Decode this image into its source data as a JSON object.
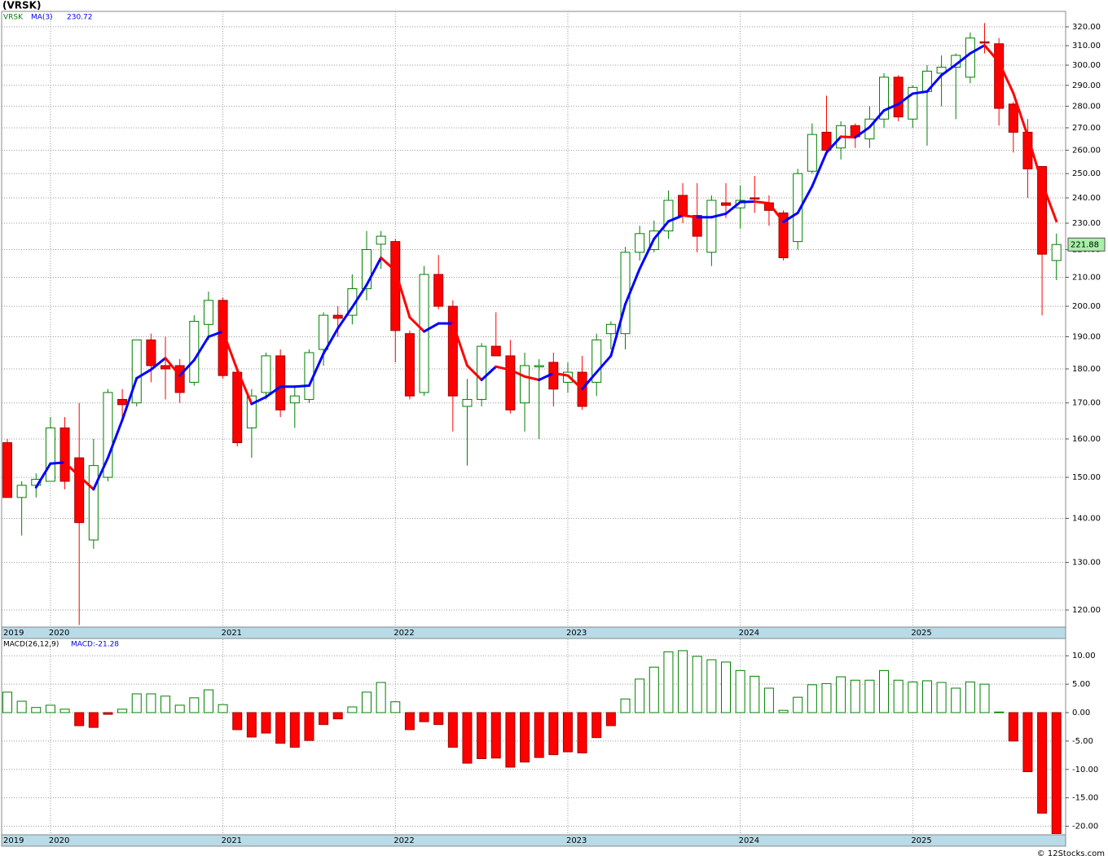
{
  "title": "(VRSK)",
  "footer": "© 12Stocks.com",
  "chart_data": [
    {
      "type": "candlestick",
      "log_scale": true,
      "grid": true,
      "categories": [
        "2019",
        null,
        null,
        "2020",
        null,
        null,
        null,
        null,
        null,
        null,
        null,
        null,
        null,
        null,
        null,
        "2021",
        null,
        null,
        null,
        null,
        null,
        null,
        null,
        null,
        null,
        null,
        null,
        "2022",
        null,
        null,
        null,
        null,
        null,
        null,
        null,
        null,
        null,
        null,
        null,
        "2023",
        null,
        null,
        null,
        null,
        null,
        null,
        null,
        null,
        null,
        null,
        null,
        "2024",
        null,
        null,
        null,
        null,
        null,
        null,
        null,
        null,
        null,
        null,
        null,
        "2025",
        null,
        null,
        null,
        null,
        null,
        null,
        null,
        null,
        null,
        null
      ],
      "ylim": [
        116.6,
        328.4
      ],
      "yticks": [
        {
          "value": 120,
          "label": "120.00"
        },
        {
          "value": 130,
          "label": "130.00"
        },
        {
          "value": 140,
          "label": "140.00"
        },
        {
          "value": 150,
          "label": "150.00"
        },
        {
          "value": 160,
          "label": "160.00"
        },
        {
          "value": 170,
          "label": "170.00"
        },
        {
          "value": 180,
          "label": "180.00"
        },
        {
          "value": 190,
          "label": "190.00"
        },
        {
          "value": 200,
          "label": "200.00"
        },
        {
          "value": 210,
          "label": "210.00"
        },
        {
          "value": 220,
          "label": "220.00"
        },
        {
          "value": 230,
          "label": "230.00"
        },
        {
          "value": 240,
          "label": "240.00"
        },
        {
          "value": 250,
          "label": "250.00"
        },
        {
          "value": 260,
          "label": "260.00"
        },
        {
          "value": 270,
          "label": "270.00"
        },
        {
          "value": 280,
          "label": "280.00"
        },
        {
          "value": 290,
          "label": "290.00"
        },
        {
          "value": 300,
          "label": "300.00"
        },
        {
          "value": 310,
          "label": "310.00"
        },
        {
          "value": 320,
          "label": "320.00"
        }
      ],
      "series": [
        {
          "name": "VRSK",
          "up_color": "#008000",
          "down_color": "#ff0000",
          "open": [
            159,
            145,
            148,
            149,
            163,
            155,
            135,
            150,
            171,
            170,
            189,
            181,
            181,
            176,
            194,
            202,
            179,
            163,
            173,
            184,
            170,
            171,
            186,
            197,
            197,
            206,
            222,
            223,
            191,
            173,
            211,
            200,
            169,
            171,
            187,
            184,
            170,
            181,
            182,
            176,
            179,
            176,
            191,
            191,
            219,
            220,
            227,
            241,
            233,
            219,
            238,
            236,
            240,
            238,
            234,
            223,
            251,
            268,
            261,
            271,
            265,
            274,
            294,
            274,
            287,
            296,
            299,
            294,
            312,
            311,
            281,
            268,
            253,
            216
          ],
          "high": [
            160,
            149,
            151,
            166,
            166,
            170,
            160,
            174,
            174,
            189,
            191,
            190,
            183,
            197,
            205,
            203,
            180,
            174,
            185,
            186,
            175,
            186,
            198,
            200,
            211,
            227,
            227,
            224,
            192,
            214,
            218,
            202,
            177,
            188,
            198,
            189,
            185,
            183,
            185,
            182,
            184,
            191,
            195,
            221,
            229,
            231,
            243,
            246,
            246,
            241,
            246,
            245,
            249,
            241,
            235,
            252,
            272,
            285,
            273,
            272,
            280,
            296,
            295,
            290,
            300,
            305,
            306,
            317,
            322,
            314,
            282,
            274,
            253,
            226
          ],
          "low": [
            145,
            136,
            145,
            149,
            147,
            117,
            133,
            149,
            165,
            169,
            176,
            171,
            170,
            175,
            189,
            177,
            158,
            155,
            171,
            166,
            163,
            170,
            181,
            190,
            194,
            202,
            213,
            182,
            171,
            172,
            199,
            162,
            153,
            169,
            184,
            167,
            162,
            160,
            169,
            173,
            168,
            172,
            186,
            186,
            216,
            219,
            224,
            230,
            219,
            214,
            232,
            228,
            234,
            229,
            216,
            220,
            250,
            259,
            256,
            261,
            261,
            270,
            273,
            270,
            262,
            280,
            274,
            291,
            306,
            271,
            259,
            240,
            197,
            209
          ],
          "close": [
            145,
            148,
            149.5,
            163,
            149,
            139,
            153,
            173,
            169.5,
            189,
            181,
            180,
            173,
            195,
            202,
            178,
            159,
            172,
            184,
            168,
            172,
            185,
            197,
            196,
            206,
            220,
            225,
            192,
            172,
            211,
            200,
            172,
            171,
            187,
            184,
            168,
            181,
            181,
            174,
            179,
            169,
            189,
            194,
            219,
            226,
            227,
            239,
            233,
            225,
            239,
            237,
            239,
            239.5,
            235,
            217,
            250,
            267,
            260,
            271,
            266,
            274,
            294,
            275,
            289,
            297,
            299,
            305,
            314,
            311.5,
            279,
            268,
            252,
            218.3,
            221.88
          ]
        },
        {
          "name": "MA(3)",
          "type": "line",
          "color": "#0000ff",
          "falling_color": "#ff0000",
          "values": [
            null,
            null,
            147.5,
            153.5,
            153.8,
            150.3,
            147,
            155,
            165.2,
            177.2,
            179.8,
            183.3,
            178,
            182.7,
            190,
            191.7,
            179.7,
            169.7,
            171.7,
            174.7,
            174.7,
            175,
            184.7,
            192.7,
            199.7,
            207.3,
            217,
            212.3,
            196.3,
            191.7,
            194.3,
            194.3,
            181,
            176.7,
            180.7,
            179.7,
            177.7,
            176.7,
            178.7,
            178,
            174,
            179,
            184,
            200.7,
            213,
            224,
            230.7,
            233,
            232.3,
            232.3,
            233.7,
            238.3,
            238.5,
            237.8,
            230.5,
            234,
            244.7,
            259,
            266,
            265.7,
            270.3,
            278,
            281,
            286,
            287,
            295,
            300.3,
            306,
            310.2,
            301.5,
            286.2,
            266.3,
            246.1,
            230.72
          ]
        }
      ]
    },
    {
      "type": "bar",
      "grid": true,
      "categories": [
        "2019",
        null,
        null,
        "2020",
        null,
        null,
        null,
        null,
        null,
        null,
        null,
        null,
        null,
        null,
        null,
        "2021",
        null,
        null,
        null,
        null,
        null,
        null,
        null,
        null,
        null,
        null,
        null,
        "2022",
        null,
        null,
        null,
        null,
        null,
        null,
        null,
        null,
        null,
        null,
        null,
        "2023",
        null,
        null,
        null,
        null,
        null,
        null,
        null,
        null,
        null,
        null,
        null,
        "2024",
        null,
        null,
        null,
        null,
        null,
        null,
        null,
        null,
        null,
        null,
        null,
        "2025",
        null,
        null,
        null,
        null,
        null,
        null,
        null,
        null,
        null,
        null
      ],
      "ylim": [
        -21.5,
        12.9
      ],
      "yticks": [
        {
          "value": 10,
          "label": "10.00"
        },
        {
          "value": 5,
          "label": "5.00"
        },
        {
          "value": 0,
          "label": "0.00"
        },
        {
          "value": -5,
          "label": "-5.00"
        },
        {
          "value": -10,
          "label": "-10.00"
        },
        {
          "value": -15,
          "label": "-15.00"
        },
        {
          "value": -20,
          "label": "-20.00"
        }
      ],
      "series": [
        {
          "name": "MACD(26,12,9)",
          "value_label": "MACD:-21.28",
          "color": "#008000",
          "negative_color": "#ff0000",
          "values": [
            3.6,
            2.0,
            0.9,
            1.3,
            0.6,
            -2.3,
            -2.6,
            -0.3,
            0.6,
            3.3,
            3.3,
            2.9,
            1.3,
            2.6,
            4.0,
            1.4,
            -3.0,
            -4.3,
            -3.6,
            -5.4,
            -6.1,
            -4.9,
            -2.1,
            -1.1,
            1.0,
            3.6,
            5.3,
            1.9,
            -3.0,
            -1.6,
            -2.1,
            -6.1,
            -8.9,
            -8.1,
            -8.0,
            -9.6,
            -8.7,
            -7.9,
            -7.4,
            -6.9,
            -7.1,
            -4.4,
            -2.3,
            2.4,
            5.9,
            8.0,
            10.7,
            10.9,
            9.9,
            9.3,
            8.9,
            7.4,
            6.4,
            4.3,
            0.4,
            2.7,
            4.9,
            5.1,
            6.3,
            5.7,
            5.7,
            7.4,
            5.7,
            5.4,
            5.6,
            5.3,
            4.3,
            5.4,
            5.0,
            0.1,
            -5.0,
            -10.4,
            -17.7,
            -21.28
          ]
        }
      ]
    }
  ]
}
